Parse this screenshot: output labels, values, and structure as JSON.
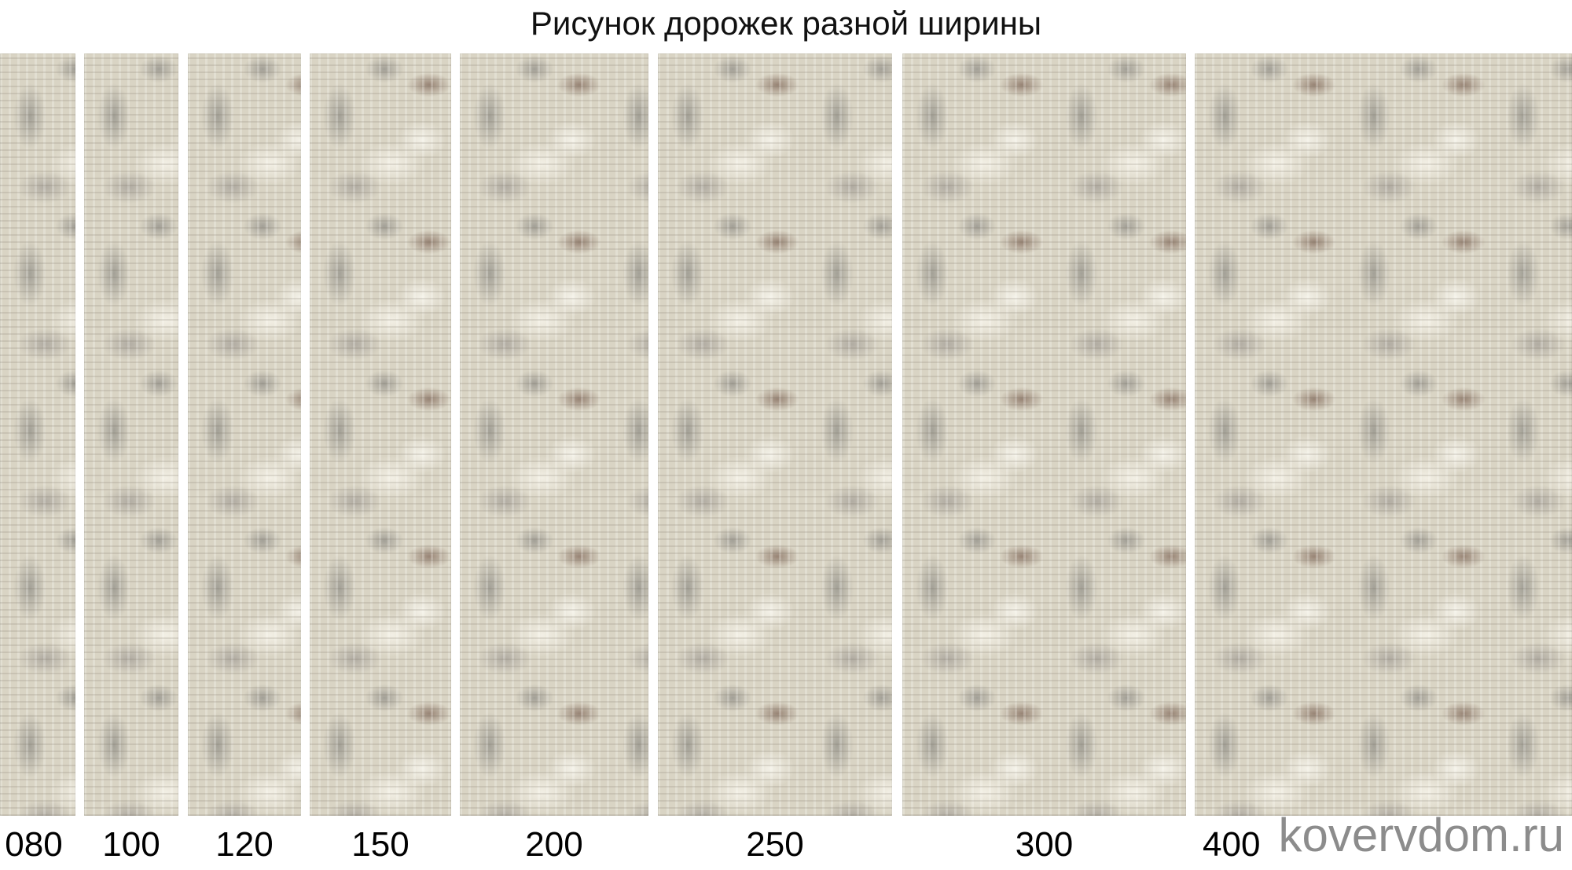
{
  "title": "Рисунок дорожек разной ширины",
  "runners": [
    {
      "width_label": "080"
    },
    {
      "width_label": "100"
    },
    {
      "width_label": "120"
    },
    {
      "width_label": "150"
    },
    {
      "width_label": "200"
    },
    {
      "width_label": "250"
    },
    {
      "width_label": "300"
    },
    {
      "width_label": "400"
    }
  ],
  "watermark": "kovervdom.ru",
  "colors": {
    "carpet_base": "#d9d4c4",
    "carpet_accent_brown": "#826a5a",
    "carpet_gray": "#96948c",
    "watermark": "#8c8c8c"
  }
}
